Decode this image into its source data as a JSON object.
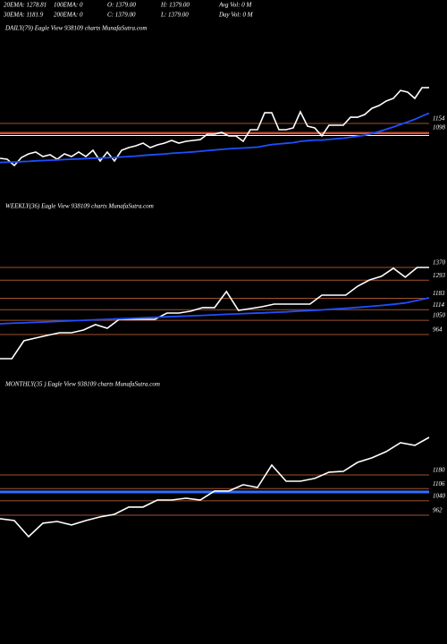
{
  "header": [
    "20EMA: 1278.81",
    "100EMA: 0",
    "O: 1379.00",
    "H: 1379.00",
    "Avg Vol: 0  M",
    "30EMA: 1181.9",
    "200EMA: 0",
    "C: 1379.00",
    "L: 1379.00",
    "Day Vol: 0  M"
  ],
  "chart_data": [
    {
      "type": "line",
      "title": "DAILY(79) Eagle  View  938109 charts MunafaSutra.com",
      "ylim": [
        807,
        1703
      ],
      "yticks": [
        1154,
        1098
      ],
      "tick_color": "#a0522d",
      "series": [
        {
          "color": "#ffffff",
          "values": [
            936,
            930,
            891,
            941,
            964,
            975,
            947,
            958,
            930,
            964,
            947,
            975,
            947,
            986,
            919,
            975,
            919,
            986,
            1003,
            1014,
            1031,
            1003,
            1020,
            1031,
            1048,
            1031,
            1042,
            1048,
            1053,
            1087,
            1087,
            1098,
            1076,
            1076,
            1042,
            1115,
            1115,
            1221,
            1221,
            1115,
            1115,
            1126,
            1227,
            1137,
            1126,
            1076,
            1143,
            1143,
            1143,
            1193,
            1193,
            1210,
            1249,
            1266,
            1294,
            1311,
            1361,
            1350,
            1311,
            1378,
            1379
          ]
        },
        {
          "color": "#1e4fff",
          "values": [
            910,
            912,
            913,
            915,
            917,
            920,
            922,
            924,
            926,
            928,
            930,
            932,
            934,
            937,
            938,
            940,
            941,
            944,
            947,
            950,
            954,
            957,
            960,
            963,
            967,
            970,
            973,
            976,
            980,
            984,
            988,
            992,
            995,
            998,
            1000,
            1003,
            1006,
            1014,
            1022,
            1026,
            1030,
            1034,
            1042,
            1046,
            1050,
            1050,
            1054,
            1058,
            1062,
            1068,
            1074,
            1080,
            1092,
            1104,
            1118,
            1132,
            1148,
            1164,
            1180,
            1200,
            1218
          ]
        }
      ]
    },
    {
      "type": "line",
      "title": "WEEKLY(36) Eagle  View  938109 charts MunafaSutra.com",
      "ylim": [
        715,
        1662
      ],
      "yticks": [
        1370,
        1293,
        1183,
        1114,
        1050,
        964
      ],
      "tick_color": "#a0522d",
      "series": [
        {
          "color": "#ffffff",
          "values": [
            818,
            818,
            926,
            943,
            959,
            975,
            975,
            991,
            1024,
            1002,
            1056,
            1056,
            1056,
            1056,
            1094,
            1094,
            1105,
            1127,
            1127,
            1224,
            1110,
            1121,
            1132,
            1148,
            1148,
            1148,
            1148,
            1202,
            1202,
            1202,
            1256,
            1294,
            1316,
            1365,
            1311,
            1370,
            1370
          ]
        },
        {
          "color": "#1e4fff",
          "values": [
            1029,
            1032,
            1035,
            1038,
            1041,
            1044,
            1047,
            1050,
            1053,
            1056,
            1059,
            1062,
            1065,
            1068,
            1071,
            1074,
            1077,
            1080,
            1083,
            1086,
            1089,
            1092,
            1095,
            1098,
            1101,
            1105,
            1109,
            1113,
            1118,
            1123,
            1128,
            1134,
            1140,
            1147,
            1155,
            1170,
            1186
          ]
        }
      ]
    },
    {
      "type": "line",
      "title": "MONTHLY(35             ) Eagle  View  938109 charts MunafaSutra.com",
      "ylim": [
        749,
        1475
      ],
      "yticks": [
        1180,
        1106,
        1040,
        962
      ],
      "tick_color": "#a0522d",
      "series": [
        {
          "color": "#ffffff",
          "values": [
            943,
            933,
            846,
            919,
            928,
            909,
            933,
            953,
            967,
            1006,
            1006,
            1044,
            1044,
            1054,
            1044,
            1093,
            1093,
            1127,
            1112,
            1233,
            1146,
            1146,
            1161,
            1195,
            1199,
            1248,
            1272,
            1306,
            1354,
            1340,
            1383
          ]
        }
      ]
    }
  ]
}
